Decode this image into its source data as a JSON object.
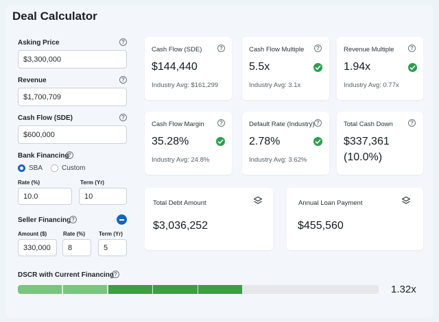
{
  "title": "Deal Calculator",
  "form": {
    "asking_price": {
      "label": "Asking Price",
      "value": "$3,300,000"
    },
    "revenue": {
      "label": "Revenue",
      "value": "$1,700,709"
    },
    "cash_flow": {
      "label": "Cash Flow (SDE)",
      "value": "$600,000"
    },
    "bank_financing": {
      "label": "Bank Financing",
      "options": [
        "SBA",
        "Custom"
      ],
      "selected": "SBA",
      "rate_label": "Rate (%)",
      "rate_value": "10.0",
      "term_label": "Term (Yr)",
      "term_value": "10"
    },
    "seller_financing": {
      "label": "Seller Financing",
      "amount_label": "Amount ($)",
      "amount_value": "330,000",
      "rate_label": "Rate (%)",
      "rate_value": "8",
      "term_label": "Term (Yr)",
      "term_value": "5"
    }
  },
  "cards": {
    "cash_flow": {
      "title": "Cash Flow (SDE)",
      "value": "$144,440",
      "sub": "Industry Avg: $161,299"
    },
    "cash_flow_multiple": {
      "title": "Cash Flow Multiple",
      "value": "5.5x",
      "sub": "Industry Avg: 3.1x"
    },
    "revenue_multiple": {
      "title": "Revenue Multiple",
      "value": "1.94x",
      "sub": "Industry Avg: 0.77x"
    },
    "cash_flow_margin": {
      "title": "Cash Flow Margin",
      "value": "35.28%",
      "sub": "Industry Avg: 24.8%"
    },
    "default_rate": {
      "title": "Default Rate (Industry)",
      "value": "2.78%",
      "sub": "Industry Avg: 3.62%"
    },
    "total_cash_down": {
      "title": "Total Cash Down",
      "value_line1": "$337,361",
      "value_line2": "(10.0%)"
    },
    "total_debt": {
      "title": "Total Debt Amount",
      "value": "$3,036,252"
    },
    "annual_loan": {
      "title": "Annual Loan Payment",
      "value": "$455,560"
    }
  },
  "dscr": {
    "label": "DSCR with Current Financing",
    "value_text": "1.32x",
    "filled_segments": 5,
    "total_segments": 8,
    "colors": [
      "#7cc47f",
      "#7cc47f",
      "#3f9d45",
      "#3f9d45",
      "#3f9d45",
      "#e5e7ea",
      "#e5e7ea",
      "#e5e7ea"
    ]
  },
  "icons": {
    "help": "question-circle-icon",
    "check": "check-circle-icon",
    "layers": "layers-icon",
    "minus": "minus-circle-icon"
  },
  "colors": {
    "accent": "#1565c0",
    "success": "#2e9e4f"
  }
}
